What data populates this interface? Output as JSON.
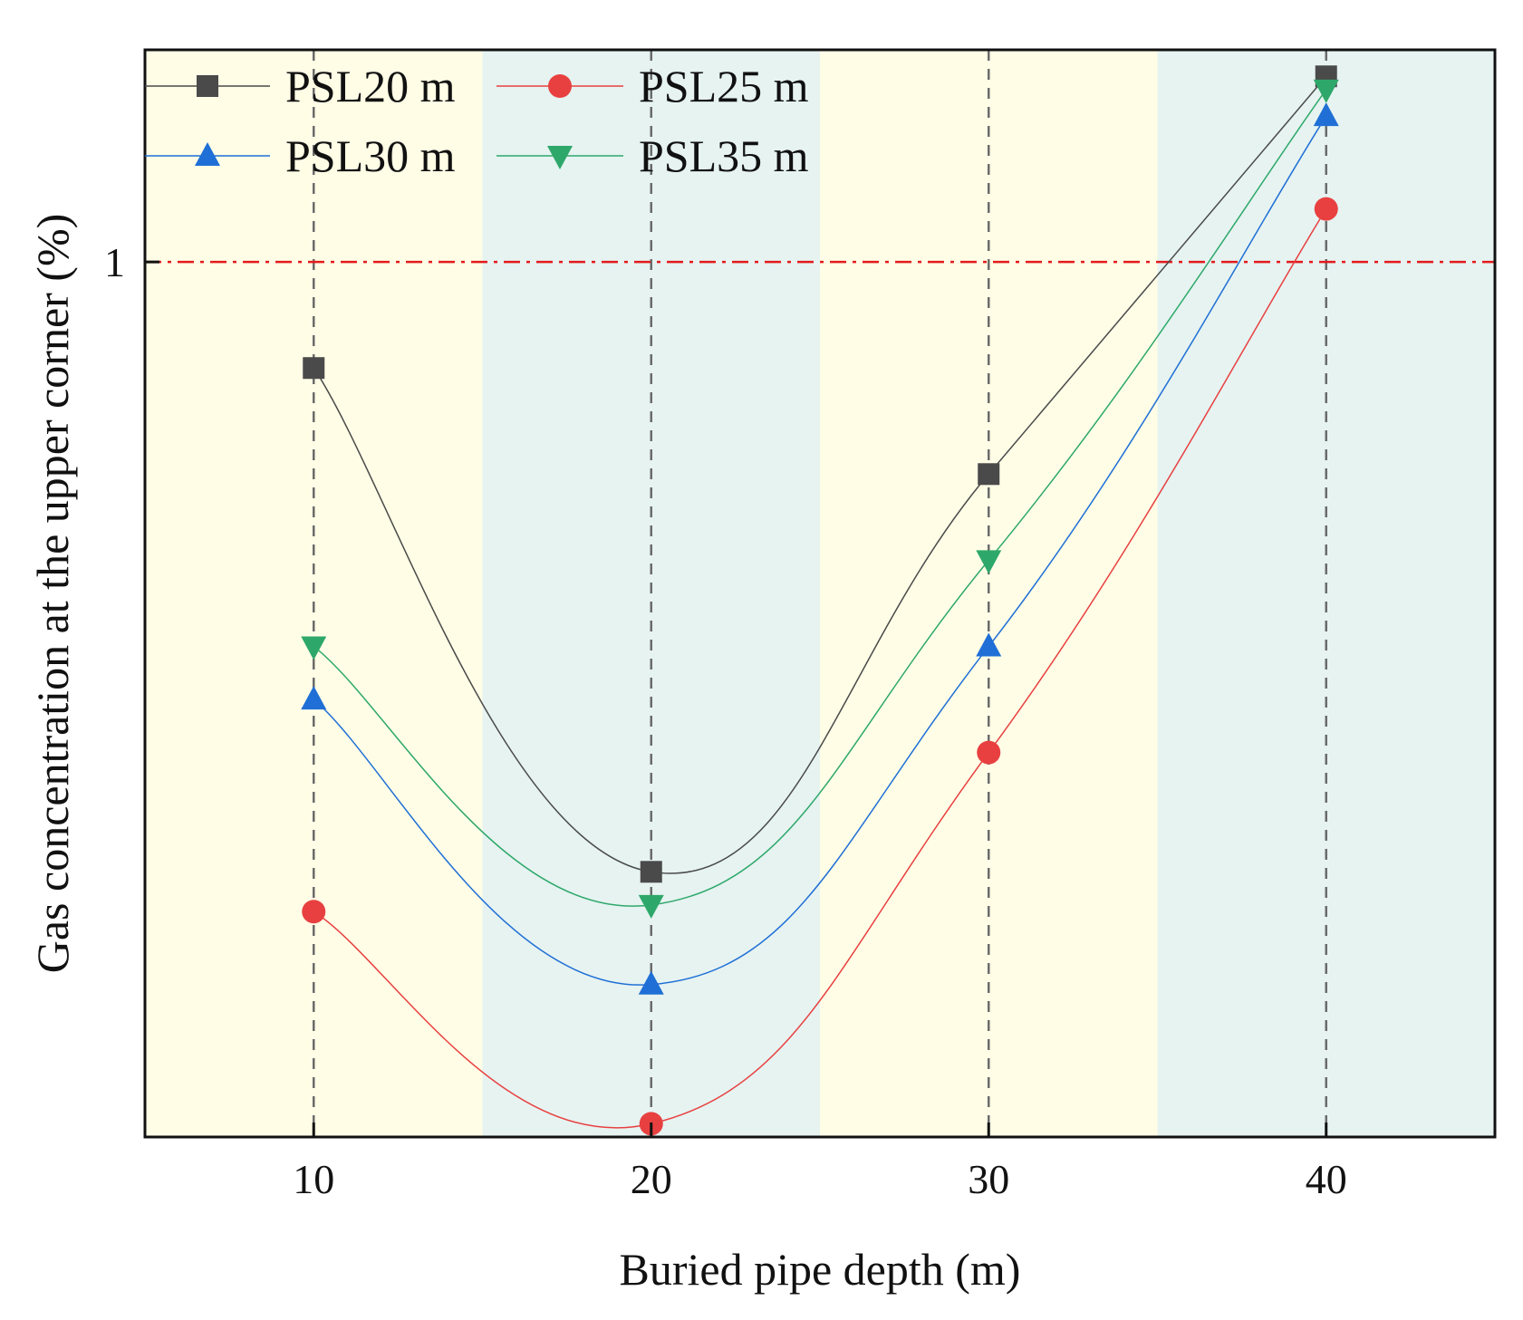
{
  "chart_data": {
    "type": "line",
    "title": "",
    "xlabel": "Buried pipe depth (m)",
    "ylabel": "Gas concentration at the upper corner (%)",
    "x": [
      10,
      20,
      30,
      40
    ],
    "x_tick_labels": [
      "10",
      "20",
      "30",
      "40"
    ],
    "xlim": [
      5,
      45
    ],
    "ylim": [
      0.34,
      1.16
    ],
    "y_tick_values": [
      1
    ],
    "y_tick_labels": [
      "1"
    ],
    "reference_line": {
      "y": 1,
      "style": "dash-dot",
      "color": "#e31a1c"
    },
    "shaded_bands": [
      {
        "x_range": [
          5,
          15
        ],
        "color": "#fffde6"
      },
      {
        "x_range": [
          15,
          25
        ],
        "color": "#e6f3f1"
      },
      {
        "x_range": [
          25,
          35
        ],
        "color": "#fffde6"
      },
      {
        "x_range": [
          35,
          45
        ],
        "color": "#e6f3f1"
      }
    ],
    "legend_position": "top-left",
    "series": [
      {
        "name": "PSL20 m",
        "marker": "square",
        "color": "#4a4a4a",
        "values": [
          0.92,
          0.54,
          0.84,
          1.14
        ]
      },
      {
        "name": "PSL25 m",
        "marker": "circle",
        "color": "#e84040",
        "values": [
          0.51,
          0.35,
          0.63,
          1.04
        ]
      },
      {
        "name": "PSL30 m",
        "marker": "triangle-up",
        "color": "#1f6fd6",
        "values": [
          0.67,
          0.455,
          0.71,
          1.11
        ]
      },
      {
        "name": "PSL35 m",
        "marker": "triangle-down",
        "color": "#2ea86a",
        "values": [
          0.71,
          0.515,
          0.775,
          1.13
        ]
      }
    ]
  }
}
